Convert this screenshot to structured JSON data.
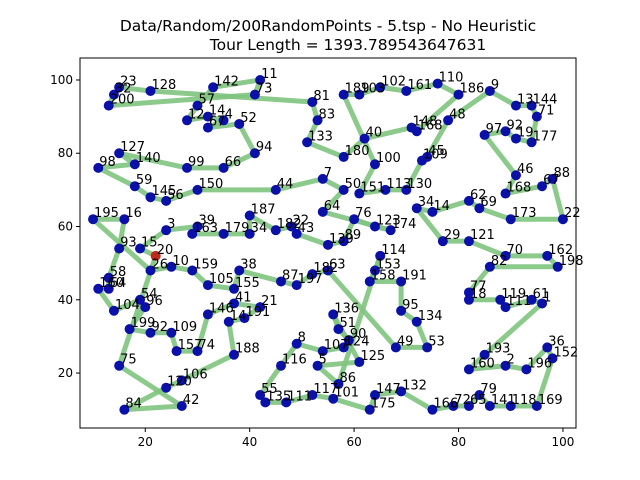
{
  "chart_data": {
    "type": "scatter",
    "title_line1": "Data/Random/200RandomPoints - 5.tsp - No Heuristic",
    "title_line2": "Tour Length = 1393.789543647631",
    "xlim": [
      7.5,
      102.5
    ],
    "ylim": [
      5,
      106
    ],
    "x_ticks": [
      20,
      40,
      60,
      80,
      100
    ],
    "y_ticks": [
      20,
      40,
      60,
      80,
      100
    ],
    "grid": false,
    "legend": "none",
    "colors": {
      "node": "#0a10a8",
      "start_node": "#c0281b",
      "edge": "#7fc47f",
      "edge_alpha": 0.9
    },
    "start_node": "20",
    "points": [
      {
        "id": "23",
        "x": 15,
        "y": 98
      },
      {
        "id": "128",
        "x": 21,
        "y": 97
      },
      {
        "id": "32",
        "x": 14,
        "y": 96
      },
      {
        "id": "200",
        "x": 13,
        "y": 93
      },
      {
        "id": "142",
        "x": 33,
        "y": 98
      },
      {
        "id": "11",
        "x": 42,
        "y": 100
      },
      {
        "id": "73",
        "x": 41,
        "y": 96
      },
      {
        "id": "57",
        "x": 30,
        "y": 93
      },
      {
        "id": "12",
        "x": 28,
        "y": 89
      },
      {
        "id": "14",
        "x": 32,
        "y": 90
      },
      {
        "id": "4",
        "x": 35,
        "y": 89
      },
      {
        "id": "67",
        "x": 32,
        "y": 87
      },
      {
        "id": "52",
        "x": 38,
        "y": 88
      },
      {
        "id": "127",
        "x": 15,
        "y": 80
      },
      {
        "id": "140",
        "x": 18,
        "y": 77
      },
      {
        "id": "98",
        "x": 11,
        "y": 76
      },
      {
        "id": "59",
        "x": 18,
        "y": 71
      },
      {
        "id": "99",
        "x": 28,
        "y": 76
      },
      {
        "id": "66",
        "x": 35,
        "y": 76
      },
      {
        "id": "94",
        "x": 41,
        "y": 80
      },
      {
        "id": "150",
        "x": 30,
        "y": 70
      },
      {
        "id": "145",
        "x": 21,
        "y": 68
      },
      {
        "id": "56",
        "x": 24,
        "y": 67
      },
      {
        "id": "195",
        "x": 10,
        "y": 62
      },
      {
        "id": "16",
        "x": 16,
        "y": 62
      },
      {
        "id": "93",
        "x": 15,
        "y": 54
      },
      {
        "id": "3",
        "x": 24,
        "y": 59
      },
      {
        "id": "39",
        "x": 30,
        "y": 60
      },
      {
        "id": "163",
        "x": 29,
        "y": 58
      },
      {
        "id": "187",
        "x": 40,
        "y": 63
      },
      {
        "id": "179",
        "x": 35,
        "y": 58
      },
      {
        "id": "34",
        "x": 40,
        "y": 58
      },
      {
        "id": "182",
        "x": 45,
        "y": 59
      },
      {
        "id": "22",
        "x": 48,
        "y": 60
      },
      {
        "id": "43",
        "x": 49,
        "y": 58
      },
      {
        "id": "15",
        "x": 19,
        "y": 54
      },
      {
        "id": "20",
        "x": 22,
        "y": 52
      },
      {
        "id": "26",
        "x": 21,
        "y": 48
      },
      {
        "id": "10",
        "x": 25,
        "y": 49
      },
      {
        "id": "159",
        "x": 29,
        "y": 48
      },
      {
        "id": "38",
        "x": 38,
        "y": 48
      },
      {
        "id": "58",
        "x": 13,
        "y": 46
      },
      {
        "id": "160b",
        "x": 11,
        "y": 43
      },
      {
        "id": "64",
        "x": 13,
        "y": 43
      },
      {
        "id": "104",
        "x": 14,
        "y": 37
      },
      {
        "id": "105",
        "x": 32,
        "y": 44
      },
      {
        "id": "155",
        "x": 37,
        "y": 43
      },
      {
        "id": "87",
        "x": 46,
        "y": 45
      },
      {
        "id": "197",
        "x": 49,
        "y": 44
      },
      {
        "id": "182b",
        "x": 52,
        "y": 47
      },
      {
        "id": "63",
        "x": 55,
        "y": 48
      },
      {
        "id": "54",
        "x": 19,
        "y": 40
      },
      {
        "id": "96",
        "x": 20,
        "y": 38
      },
      {
        "id": "146",
        "x": 32,
        "y": 36
      },
      {
        "id": "41",
        "x": 37,
        "y": 39
      },
      {
        "id": "21",
        "x": 42,
        "y": 38
      },
      {
        "id": "14b",
        "x": 36,
        "y": 34
      },
      {
        "id": "191b",
        "x": 39,
        "y": 35
      },
      {
        "id": "199",
        "x": 17,
        "y": 32
      },
      {
        "id": "92",
        "x": 21,
        "y": 31
      },
      {
        "id": "109",
        "x": 25,
        "y": 31
      },
      {
        "id": "75",
        "x": 15,
        "y": 22
      },
      {
        "id": "157",
        "x": 26,
        "y": 26
      },
      {
        "id": "74",
        "x": 30,
        "y": 26
      },
      {
        "id": "188",
        "x": 37,
        "y": 25
      },
      {
        "id": "8",
        "x": 49,
        "y": 28
      },
      {
        "id": "116",
        "x": 46,
        "y": 22
      },
      {
        "id": "5",
        "x": 53,
        "y": 22
      },
      {
        "id": "107",
        "x": 54,
        "y": 26
      },
      {
        "id": "90",
        "x": 59,
        "y": 29
      },
      {
        "id": "124",
        "x": 58,
        "y": 27
      },
      {
        "id": "136",
        "x": 56,
        "y": 36
      },
      {
        "id": "51",
        "x": 57,
        "y": 32
      },
      {
        "id": "125",
        "x": 61,
        "y": 23
      },
      {
        "id": "86",
        "x": 57,
        "y": 17
      },
      {
        "id": "120",
        "x": 24,
        "y": 16
      },
      {
        "id": "106",
        "x": 27,
        "y": 18
      },
      {
        "id": "84",
        "x": 16,
        "y": 10
      },
      {
        "id": "42",
        "x": 27,
        "y": 11
      },
      {
        "id": "55",
        "x": 42,
        "y": 14
      },
      {
        "id": "135",
        "x": 43,
        "y": 12
      },
      {
        "id": "111b",
        "x": 47,
        "y": 12
      },
      {
        "id": "117",
        "x": 52,
        "y": 14
      },
      {
        "id": "101",
        "x": 56,
        "y": 13
      },
      {
        "id": "147",
        "x": 64,
        "y": 14
      },
      {
        "id": "132",
        "x": 69,
        "y": 15
      },
      {
        "id": "175",
        "x": 63,
        "y": 10
      },
      {
        "id": "166",
        "x": 75,
        "y": 10
      },
      {
        "id": "72",
        "x": 79,
        "y": 11
      },
      {
        "id": "65",
        "x": 82,
        "y": 11
      },
      {
        "id": "79",
        "x": 84,
        "y": 14
      },
      {
        "id": "141",
        "x": 86,
        "y": 11
      },
      {
        "id": "118",
        "x": 90,
        "y": 11
      },
      {
        "id": "169",
        "x": 95,
        "y": 11
      },
      {
        "id": "193",
        "x": 85,
        "y": 25
      },
      {
        "id": "160",
        "x": 82,
        "y": 21
      },
      {
        "id": "2",
        "x": 89,
        "y": 22
      },
      {
        "id": "196",
        "x": 93,
        "y": 21
      },
      {
        "id": "36",
        "x": 97,
        "y": 27
      },
      {
        "id": "152",
        "x": 98,
        "y": 24
      },
      {
        "id": "81",
        "x": 52,
        "y": 94
      },
      {
        "id": "189",
        "x": 58,
        "y": 96
      },
      {
        "id": "103",
        "x": 61,
        "y": 96
      },
      {
        "id": "102",
        "x": 65,
        "y": 98
      },
      {
        "id": "161",
        "x": 70,
        "y": 97
      },
      {
        "id": "110",
        "x": 76,
        "y": 99
      },
      {
        "id": "186",
        "x": 80,
        "y": 96
      },
      {
        "id": "9",
        "x": 86,
        "y": 97
      },
      {
        "id": "13",
        "x": 91,
        "y": 93
      },
      {
        "id": "144",
        "x": 94,
        "y": 93
      },
      {
        "id": "71",
        "x": 95,
        "y": 90
      },
      {
        "id": "83",
        "x": 53,
        "y": 89
      },
      {
        "id": "133",
        "x": 51,
        "y": 83
      },
      {
        "id": "180",
        "x": 58,
        "y": 79
      },
      {
        "id": "40",
        "x": 62,
        "y": 84
      },
      {
        "id": "148",
        "x": 71,
        "y": 87
      },
      {
        "id": "168",
        "x": 72,
        "y": 86
      },
      {
        "id": "48",
        "x": 78,
        "y": 89
      },
      {
        "id": "97",
        "x": 85,
        "y": 85
      },
      {
        "id": "92b",
        "x": 89,
        "y": 86
      },
      {
        "id": "19",
        "x": 91,
        "y": 84
      },
      {
        "id": "177",
        "x": 94,
        "y": 83
      },
      {
        "id": "45",
        "x": 74,
        "y": 79
      },
      {
        "id": "100",
        "x": 64,
        "y": 77
      },
      {
        "id": "109b",
        "x": 73,
        "y": 78
      },
      {
        "id": "44",
        "x": 45,
        "y": 70
      },
      {
        "id": "7",
        "x": 54,
        "y": 73
      },
      {
        "id": "50",
        "x": 58,
        "y": 70
      },
      {
        "id": "151",
        "x": 61,
        "y": 69
      },
      {
        "id": "113",
        "x": 66,
        "y": 70
      },
      {
        "id": "130",
        "x": 70,
        "y": 70
      },
      {
        "id": "64b",
        "x": 54,
        "y": 64
      },
      {
        "id": "76",
        "x": 60,
        "y": 62
      },
      {
        "id": "123",
        "x": 64,
        "y": 60
      },
      {
        "id": "174",
        "x": 67,
        "y": 59
      },
      {
        "id": "34b",
        "x": 72,
        "y": 65
      },
      {
        "id": "14c",
        "x": 75,
        "y": 64
      },
      {
        "id": "29",
        "x": 77,
        "y": 56
      },
      {
        "id": "62",
        "x": 82,
        "y": 67
      },
      {
        "id": "69",
        "x": 84,
        "y": 65
      },
      {
        "id": "121",
        "x": 82,
        "y": 56
      },
      {
        "id": "46",
        "x": 91,
        "y": 74
      },
      {
        "id": "168b",
        "x": 89,
        "y": 69
      },
      {
        "id": "88",
        "x": 98,
        "y": 73
      },
      {
        "id": "67b",
        "x": 96,
        "y": 71
      },
      {
        "id": "173",
        "x": 90,
        "y": 62
      },
      {
        "id": "22b",
        "x": 100,
        "y": 62
      },
      {
        "id": "139",
        "x": 55,
        "y": 55
      },
      {
        "id": "89",
        "x": 58,
        "y": 56
      },
      {
        "id": "114",
        "x": 65,
        "y": 52
      },
      {
        "id": "153",
        "x": 64,
        "y": 48
      },
      {
        "id": "158",
        "x": 63,
        "y": 45
      },
      {
        "id": "191",
        "x": 69,
        "y": 45
      },
      {
        "id": "95",
        "x": 69,
        "y": 37
      },
      {
        "id": "134",
        "x": 72,
        "y": 34
      },
      {
        "id": "49",
        "x": 68,
        "y": 27
      },
      {
        "id": "53",
        "x": 74,
        "y": 27
      },
      {
        "id": "70",
        "x": 89,
        "y": 52
      },
      {
        "id": "162",
        "x": 97,
        "y": 52
      },
      {
        "id": "198",
        "x": 99,
        "y": 49
      },
      {
        "id": "82",
        "x": 86,
        "y": 49
      },
      {
        "id": "77",
        "x": 82,
        "y": 42
      },
      {
        "id": "18",
        "x": 82,
        "y": 40
      },
      {
        "id": "119",
        "x": 88,
        "y": 40
      },
      {
        "id": "111",
        "x": 89,
        "y": 38
      },
      {
        "id": "61",
        "x": 94,
        "y": 40
      },
      {
        "id": "1",
        "x": 96,
        "y": 39
      }
    ],
    "tour": [
      "20",
      "15",
      "3",
      "39",
      "163",
      "179",
      "34",
      "187",
      "182",
      "22",
      "43",
      "139",
      "89",
      "76",
      "123",
      "174",
      "64b",
      "50",
      "7",
      "44",
      "150",
      "56",
      "145",
      "59",
      "98",
      "140",
      "127",
      "99",
      "66",
      "94",
      "52",
      "67",
      "4",
      "14",
      "12",
      "57",
      "142",
      "11",
      "73",
      "200",
      "32",
      "23",
      "128",
      "81",
      "83",
      "133",
      "180",
      "40",
      "148",
      "168",
      "186",
      "110",
      "161",
      "102",
      "103",
      "189",
      "100",
      "151",
      "113",
      "130",
      "109b",
      "45",
      "48",
      "9",
      "13",
      "144",
      "71",
      "177",
      "19",
      "92b",
      "97",
      "46",
      "168b",
      "67b",
      "88",
      "22b",
      "173",
      "69",
      "62",
      "14c",
      "34b",
      "29",
      "121",
      "70",
      "162",
      "198",
      "82",
      "77",
      "18",
      "119",
      "111",
      "61",
      "1",
      "193",
      "160",
      "2",
      "196",
      "36",
      "152",
      "169",
      "118",
      "141",
      "79",
      "65",
      "72",
      "166",
      "132",
      "147",
      "175",
      "101",
      "117",
      "111b",
      "135",
      "55",
      "116",
      "8",
      "107",
      "124",
      "90",
      "51",
      "136",
      "125",
      "5",
      "86",
      "114",
      "153",
      "158",
      "191",
      "95",
      "134",
      "53",
      "49",
      "63",
      "182b",
      "197",
      "87",
      "38",
      "155",
      "105",
      "159",
      "10",
      "26",
      "195",
      "16",
      "93",
      "58",
      "64",
      "160b",
      "104",
      "54",
      "96",
      "199",
      "92",
      "109",
      "157",
      "74",
      "146",
      "41",
      "21",
      "191b",
      "14b",
      "188",
      "106",
      "120",
      "84",
      "42",
      "75",
      "20"
    ]
  }
}
